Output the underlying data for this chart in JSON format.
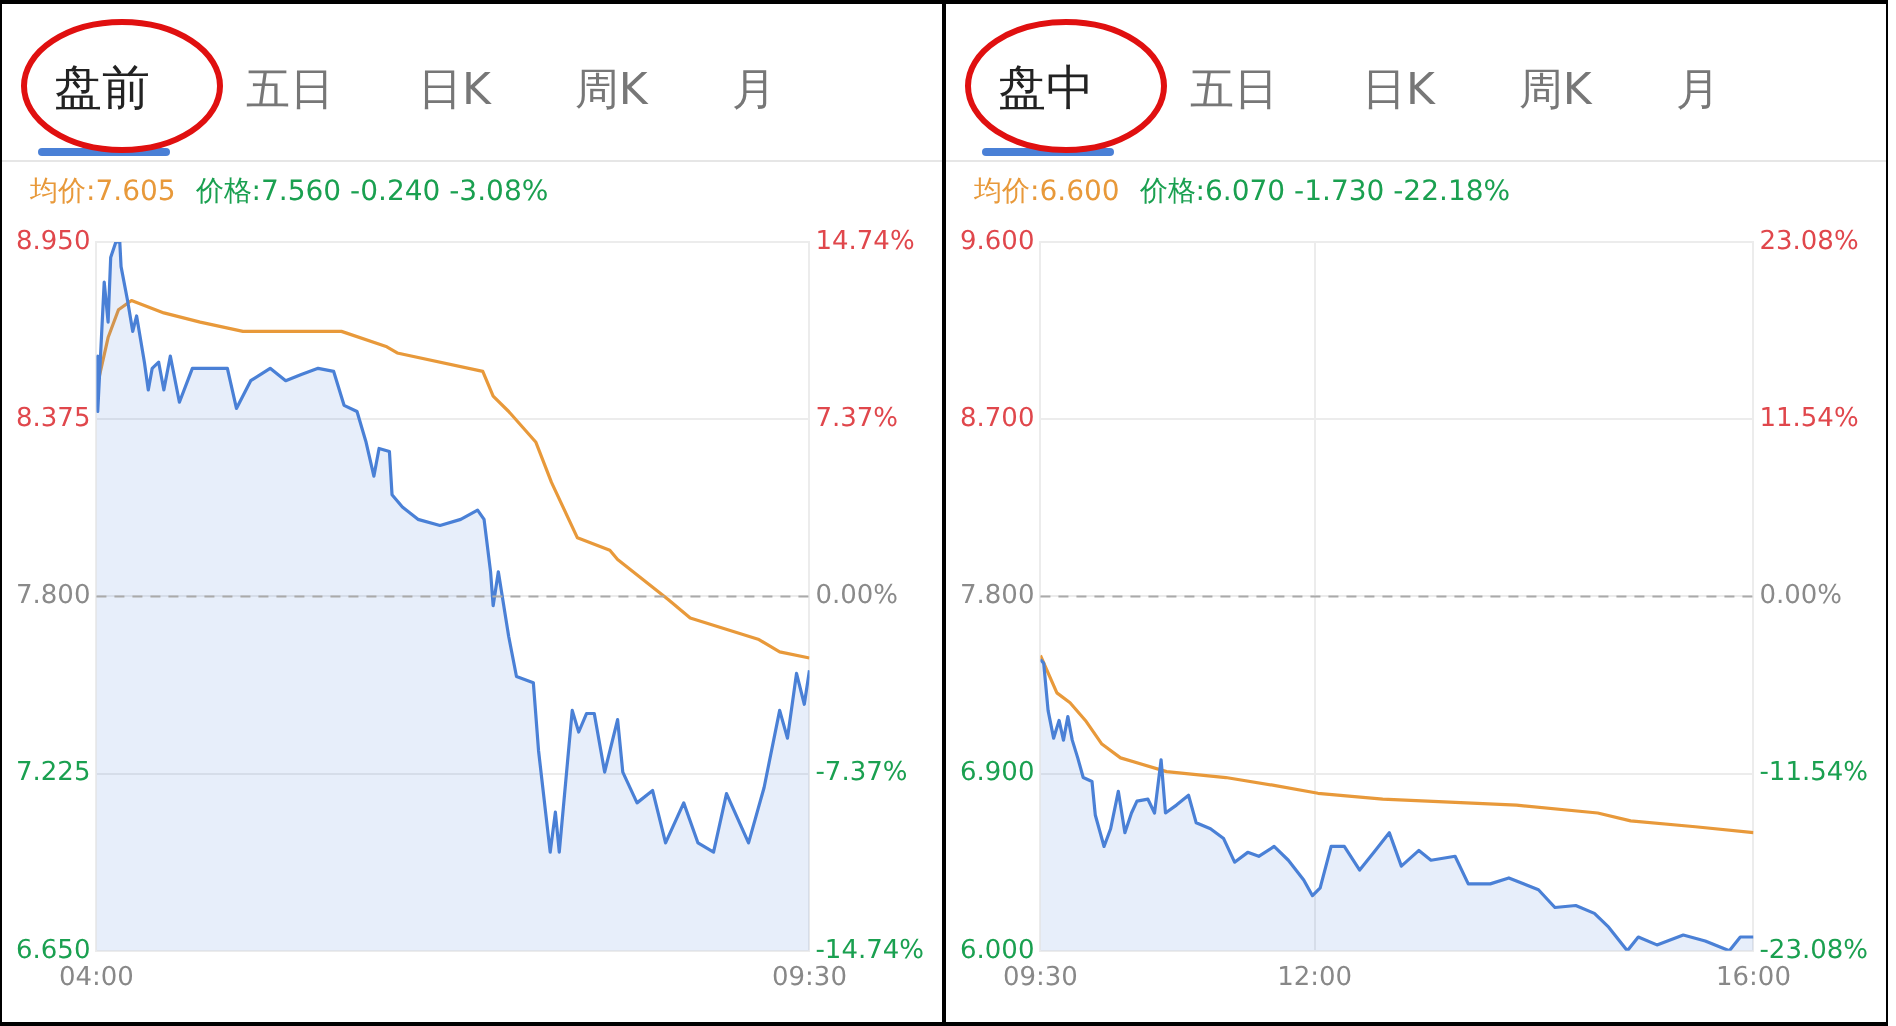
{
  "chart_data": [
    {
      "type": "line",
      "title": "盘前",
      "subtitle": "五日  日K  周K  月",
      "annotations": [
        "均价:7.605",
        "价格:7.560 -0.240 -3.08%"
      ],
      "xlim": [
        4,
        9.5
      ],
      "xticks": [
        {
          "value": 4,
          "label": "04:00"
        },
        {
          "value": 9.5,
          "label": "09:30"
        }
      ],
      "ylim": [
        6.65,
        8.95
      ],
      "yticks": [
        {
          "value": 6.65,
          "label": "6.650"
        },
        {
          "value": 7.225,
          "label": "7.225"
        },
        {
          "value": 7.8,
          "label": "7.800"
        },
        {
          "value": 8.375,
          "label": "8.375"
        },
        {
          "value": 8.95,
          "label": "8.950"
        }
      ],
      "y2lim": [
        -14.74,
        14.74
      ],
      "y2ticks": [
        {
          "value": -14.74,
          "label": "-14.74%"
        },
        {
          "value": -7.37,
          "label": "-7.37%"
        },
        {
          "value": 0,
          "label": "0.00%"
        },
        {
          "value": 7.37,
          "label": "7.37%"
        },
        {
          "value": 14.74,
          "label": "14.74%"
        }
      ],
      "grid": "y",
      "ref_lines": [
        {
          "axis": "y",
          "value": 7.8,
          "label": null,
          "color": "#aaaaaa",
          "line_style": "dashed"
        }
      ],
      "series": [
        {
          "type": "line",
          "color": "#e8993a",
          "x": [
            4.02,
            4.09,
            4.17,
            4.27,
            4.52,
            4.8,
            5.13,
            5.89,
            6.24,
            6.32,
            6.98,
            7.06,
            7.18,
            7.39,
            7.51,
            7.71,
            7.96,
            8.02,
            8.41,
            8.58,
            9.11,
            9.27,
            9.5
          ],
          "values": [
            8.51,
            8.64,
            8.73,
            8.76,
            8.72,
            8.69,
            8.66,
            8.66,
            8.61,
            8.59,
            8.53,
            8.45,
            8.4,
            8.3,
            8.17,
            7.99,
            7.95,
            7.92,
            7.79,
            7.73,
            7.66,
            7.62,
            7.6
          ]
        },
        {
          "type": "area",
          "color": "#4a80d6",
          "x": [
            4,
            4.01,
            4.06,
            4.09,
            4.11,
            4.15,
            4.18,
            4.19,
            4.24,
            4.28,
            4.31,
            4.37,
            4.4,
            4.43,
            4.48,
            4.52,
            4.57,
            4.64,
            4.74,
            4.89,
            5.01,
            5.08,
            5.19,
            5.34,
            5.46,
            5.58,
            5.71,
            5.83,
            5.91,
            6.01,
            6.08,
            6.14,
            6.18,
            6.26,
            6.28,
            6.36,
            6.48,
            6.65,
            6.81,
            6.94,
            6.99,
            7.04,
            7.06,
            7.1,
            7.18,
            7.24,
            7.37,
            7.41,
            7.5,
            7.54,
            7.57,
            7.67,
            7.72,
            7.78,
            7.84,
            7.92,
            8.02,
            8.06,
            8.17,
            8.29,
            8.39,
            8.53,
            8.64,
            8.76,
            8.86,
            9.03,
            9.15,
            9.27,
            9.33,
            9.4,
            9.46,
            9.5
          ],
          "values": [
            8.58,
            8.4,
            8.82,
            8.69,
            8.9,
            8.95,
            8.95,
            8.87,
            8.76,
            8.66,
            8.71,
            8.56,
            8.47,
            8.54,
            8.56,
            8.47,
            8.58,
            8.43,
            8.54,
            8.54,
            8.54,
            8.41,
            8.5,
            8.54,
            8.5,
            8.52,
            8.54,
            8.53,
            8.42,
            8.4,
            8.3,
            8.19,
            8.28,
            8.27,
            8.13,
            8.09,
            8.05,
            8.03,
            8.05,
            8.08,
            8.05,
            7.88,
            7.77,
            7.88,
            7.67,
            7.54,
            7.52,
            7.3,
            6.97,
            7.1,
            6.97,
            7.43,
            7.36,
            7.42,
            7.42,
            7.23,
            7.4,
            7.23,
            7.13,
            7.17,
            7,
            7.13,
            7,
            6.97,
            7.16,
            7,
            7.18,
            7.43,
            7.34,
            7.55,
            7.45,
            7.56
          ]
        }
      ]
    },
    {
      "type": "line",
      "title": "盘中",
      "subtitle": "五日  日K  周K  月",
      "annotations": [
        "均价:6.600",
        "价格:6.070 -1.730 -22.18%"
      ],
      "xlim": [
        9.5,
        16
      ],
      "xticks": [
        {
          "value": 9.5,
          "label": "09:30"
        },
        {
          "value": 12,
          "label": "12:00"
        },
        {
          "value": 16,
          "label": "16:00"
        }
      ],
      "ylim": [
        6,
        9.6
      ],
      "yticks": [
        {
          "value": 6,
          "label": "6.000"
        },
        {
          "value": 6.9,
          "label": "6.900"
        },
        {
          "value": 7.8,
          "label": "7.800"
        },
        {
          "value": 8.7,
          "label": "8.700"
        },
        {
          "value": 9.6,
          "label": "9.600"
        }
      ],
      "y2lim": [
        -23.08,
        23.08
      ],
      "y2ticks": [
        {
          "value": -23.08,
          "label": "-23.08%"
        },
        {
          "value": -11.54,
          "label": "-11.54%"
        },
        {
          "value": 0,
          "label": "0.00%"
        },
        {
          "value": 11.54,
          "label": "11.54%"
        },
        {
          "value": 23.08,
          "label": "23.08%"
        }
      ],
      "grid": true,
      "ref_lines": [
        {
          "axis": "y",
          "value": 7.8,
          "label": null,
          "color": "#aaaaaa",
          "line_style": "dashed"
        }
      ],
      "series": [
        {
          "type": "line",
          "color": "#e8993a",
          "x": [
            9.5,
            9.65,
            9.77,
            9.91,
            10.06,
            10.23,
            10.65,
            11.19,
            11.63,
            12.03,
            12.62,
            13.84,
            14.58,
            14.88,
            15.47,
            16
          ],
          "values": [
            7.5,
            7.31,
            7.26,
            7.17,
            7.05,
            6.98,
            6.91,
            6.88,
            6.84,
            6.8,
            6.77,
            6.74,
            6.7,
            6.66,
            6.63,
            6.6
          ]
        },
        {
          "type": "area",
          "color": "#4a80d6",
          "x": [
            9.5,
            9.53,
            9.57,
            9.62,
            9.67,
            9.71,
            9.75,
            9.79,
            9.84,
            9.89,
            9.97,
            10,
            10.08,
            10.14,
            10.21,
            10.27,
            10.33,
            10.38,
            10.48,
            10.54,
            10.6,
            10.64,
            10.74,
            10.85,
            10.92,
            11.05,
            11.17,
            11.27,
            11.39,
            11.49,
            11.63,
            11.76,
            11.9,
            11.98,
            12.05,
            12.15,
            12.27,
            12.41,
            12.54,
            12.68,
            12.79,
            12.95,
            13.06,
            13.28,
            13.4,
            13.6,
            13.77,
            14.04,
            14.19,
            14.38,
            14.55,
            14.68,
            14.85,
            14.95,
            15.12,
            15.36,
            15.56,
            15.78,
            15.88,
            16
          ],
          "values": [
            7.48,
            7.46,
            7.22,
            7.08,
            7.17,
            7.07,
            7.19,
            7.07,
            6.98,
            6.88,
            6.86,
            6.69,
            6.53,
            6.62,
            6.81,
            6.6,
            6.7,
            6.76,
            6.77,
            6.7,
            6.97,
            6.7,
            6.74,
            6.79,
            6.65,
            6.62,
            6.57,
            6.45,
            6.5,
            6.48,
            6.53,
            6.46,
            6.36,
            6.28,
            6.32,
            6.53,
            6.53,
            6.41,
            6.5,
            6.6,
            6.43,
            6.51,
            6.46,
            6.48,
            6.34,
            6.34,
            6.37,
            6.31,
            6.22,
            6.23,
            6.19,
            6.12,
            6,
            6.07,
            6.03,
            6.08,
            6.05,
            6,
            6.07,
            6.07
          ]
        }
      ]
    }
  ]
}
